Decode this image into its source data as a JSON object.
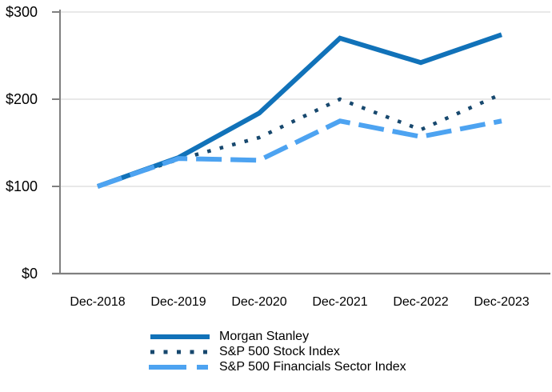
{
  "colors": {
    "grid": "#d9d9d9",
    "axis": "#808080",
    "text": "#000000",
    "morgan_stanley": "#1172b9",
    "sp500": "#17486e",
    "sp500_financials": "#4da3f1"
  },
  "chart_data": {
    "type": "line",
    "title": "",
    "xlabel": "",
    "ylabel": "",
    "categories": [
      "Dec-2018",
      "Dec-2019",
      "Dec-2020",
      "Dec-2021",
      "Dec-2022",
      "Dec-2023"
    ],
    "y_ticks": [
      {
        "value": 0,
        "label": "$0"
      },
      {
        "value": 100,
        "label": "$100"
      },
      {
        "value": 200,
        "label": "$200"
      },
      {
        "value": 300,
        "label": "$300"
      }
    ],
    "ylim": [
      0,
      300
    ],
    "grid": "horizontal",
    "legend_position": "bottom-left",
    "series": [
      {
        "name": "Morgan Stanley",
        "style": "solid",
        "color": "#1172b9",
        "values": [
          100,
          133,
          184,
          270,
          242,
          274
        ]
      },
      {
        "name": "S&P 500 Stock Index",
        "style": "dotted",
        "color": "#17486e",
        "values": [
          100,
          131,
          156,
          200,
          165,
          206
        ]
      },
      {
        "name": "S&P 500 Financials Sector Index",
        "style": "dashed",
        "color": "#4da3f1",
        "values": [
          100,
          132,
          130,
          175,
          157,
          175
        ]
      }
    ]
  }
}
